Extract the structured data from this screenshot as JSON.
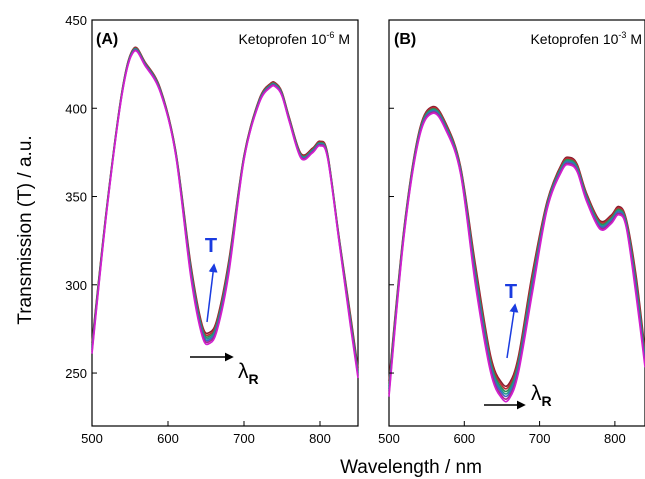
{
  "figure": {
    "ylabel": "Transmission (T) / a.u.",
    "xlabel": "Wavelength / nm"
  },
  "chart_data": [
    {
      "type": "line",
      "panel_label": "(A)",
      "title_base": "Ketoprofen 10",
      "title_exp": "-6",
      "title_unit": " M",
      "xlim": [
        500,
        850
      ],
      "ylim": [
        220,
        450
      ],
      "xticks": [
        500,
        600,
        700,
        800
      ],
      "yticks": [
        250,
        300,
        350,
        400,
        450
      ],
      "annotation_T": "T",
      "annotation_lambda": "λ",
      "annotation_lambda_sub": "R",
      "spectrum": {
        "x": [
          500,
          520,
          540,
          555,
          570,
          590,
          610,
          630,
          645,
          655,
          665,
          680,
          700,
          720,
          735,
          742,
          750,
          760,
          775,
          790,
          800,
          810,
          825,
          840,
          850
        ],
        "y": [
          264,
          345,
          410,
          433,
          425,
          410,
          375,
          308,
          274,
          270,
          278,
          310,
          372,
          404,
          413,
          413,
          408,
          393,
          373,
          376,
          380,
          373,
          326,
          280,
          250
        ]
      },
      "series": [
        {
          "name": "",
          "shift": 2.5,
          "color": "#8a1f2f"
        },
        {
          "name": "",
          "shift": 1.6,
          "color": "#c02a34"
        },
        {
          "name": "",
          "shift": 0.8,
          "color": "#2e8b57"
        },
        {
          "name": "",
          "shift": 0.0,
          "color": "#1f9a8a"
        },
        {
          "name": "",
          "shift": -0.8,
          "color": "#3f62c9"
        },
        {
          "name": "",
          "shift": -1.6,
          "color": "#a52a8a"
        },
        {
          "name": "",
          "shift": -2.5,
          "color": "#d21fd0"
        }
      ]
    },
    {
      "type": "line",
      "panel_label": "(B)",
      "title_base": "Ketoprofen 10",
      "title_exp": "-3",
      "title_unit": " M",
      "xlim": [
        500,
        840
      ],
      "ylim": [
        220,
        450
      ],
      "xticks": [
        500,
        600,
        700,
        800
      ],
      "yticks": [
        250,
        300,
        350,
        400,
        450
      ],
      "annotation_T": "T",
      "annotation_lambda": "λ",
      "annotation_lambda_sub": "R",
      "spectrum": {
        "x": [
          500,
          520,
          540,
          558,
          575,
          595,
          615,
          635,
          650,
          660,
          672,
          690,
          710,
          730,
          740,
          750,
          762,
          780,
          795,
          805,
          815,
          828,
          840
        ],
        "y": [
          241,
          330,
          385,
          399,
          390,
          365,
          305,
          255,
          240,
          240,
          255,
          300,
          345,
          367,
          370,
          366,
          350,
          334,
          337,
          342,
          335,
          300,
          258
        ]
      },
      "series": [
        {
          "name": "",
          "shift": 4.0,
          "color": "#8a1f2f"
        },
        {
          "name": "",
          "shift": 2.7,
          "color": "#c02a34"
        },
        {
          "name": "",
          "shift": 1.3,
          "color": "#2e8b57"
        },
        {
          "name": "",
          "shift": 0.0,
          "color": "#1f9a8a"
        },
        {
          "name": "",
          "shift": -1.3,
          "color": "#3f62c9"
        },
        {
          "name": "",
          "shift": -2.7,
          "color": "#a52a8a"
        },
        {
          "name": "",
          "shift": -4.0,
          "color": "#d21fd0"
        }
      ]
    }
  ]
}
